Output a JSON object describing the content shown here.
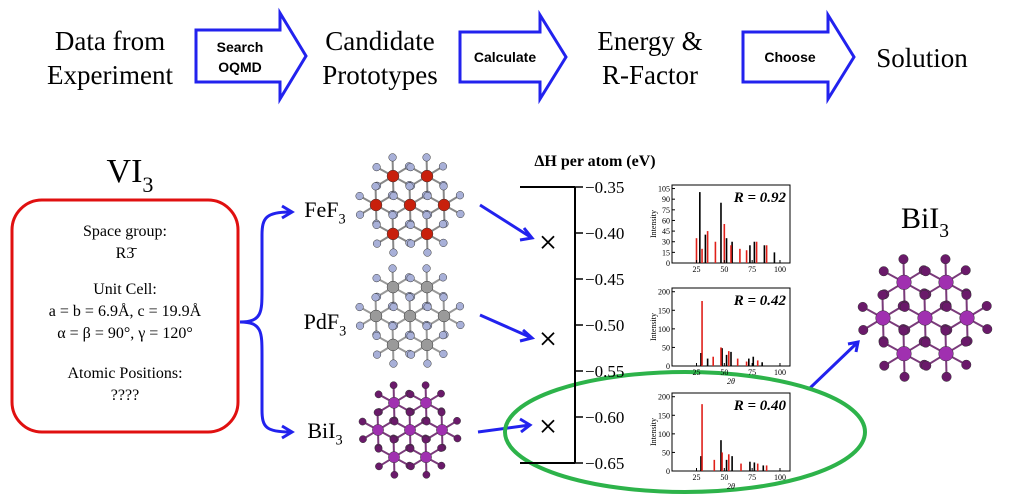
{
  "flow": {
    "steps": [
      {
        "lines": [
          "Data from",
          "Experiment"
        ]
      },
      {
        "lines": [
          "Candidate",
          "Prototypes"
        ]
      },
      {
        "lines": [
          "Energy &",
          "R-Factor"
        ]
      },
      {
        "lines": [
          "Solution"
        ]
      }
    ],
    "arrows": [
      {
        "lines": [
          "Search",
          "OQMD"
        ]
      },
      {
        "lines": [
          "Calculate"
        ]
      },
      {
        "lines": [
          "Choose"
        ]
      }
    ]
  },
  "input": {
    "title": {
      "base": "VI",
      "sub": "3"
    },
    "lines": [
      "Space group:",
      "R3̄",
      "Unit Cell:",
      "a = b = 6.9Å, c = 19.9Å",
      "α = β = 90°, γ = 120°",
      "Atomic Positions:",
      "????"
    ]
  },
  "prototypes": [
    {
      "base": "FeF",
      "sub": "3"
    },
    {
      "base": "PdF",
      "sub": "3"
    },
    {
      "base": "BiI",
      "sub": "3"
    }
  ],
  "energy": {
    "label": "ΔH per atom (eV)",
    "ylim": [
      -0.35,
      -0.65
    ],
    "yticks": [
      {
        "value": -0.35,
        "label": "−0.35"
      },
      {
        "value": -0.4,
        "label": "−0.40"
      },
      {
        "value": -0.45,
        "label": "−0.45"
      },
      {
        "value": -0.5,
        "label": "−0.50"
      },
      {
        "value": -0.55,
        "label": "−0.55"
      },
      {
        "value": -0.6,
        "label": "−0.60"
      },
      {
        "value": -0.65,
        "label": "−0.65"
      }
    ],
    "values": [
      -0.41,
      -0.515,
      -0.61
    ]
  },
  "xrd": {
    "ylabel": "Intensity",
    "xlabel": "2θ",
    "xlim": [
      3,
      109
    ],
    "xticks": [
      25,
      50,
      75,
      100
    ],
    "plots": [
      {
        "r_label": "R = 0.92",
        "ylim": [
          0,
          110
        ],
        "yticks": [
          0,
          15,
          30,
          45,
          60,
          75,
          90,
          105
        ],
        "series": [
          {
            "color": "#000000",
            "x": [
              28,
              33,
              47,
              52,
              57,
              73,
              77,
              86,
              95
            ],
            "values": [
              100,
              40,
              85,
              35,
              30,
              25,
              30,
              25,
              15
            ]
          },
          {
            "color": "#e0201a",
            "x": [
              25,
              30,
              35,
              42,
              50,
              56,
              64,
              70,
              79,
              88
            ],
            "values": [
              35,
              20,
              45,
              30,
              55,
              25,
              20,
              18,
              30,
              25
            ]
          }
        ]
      },
      {
        "r_label": "R = 0.42",
        "ylim": [
          0,
          210
        ],
        "yticks": [
          0,
          50,
          100,
          150,
          200
        ],
        "series": [
          {
            "color": "#000000",
            "x": [
              29,
              35,
              48,
              52,
              56,
              72,
              76,
              84
            ],
            "values": [
              35,
              20,
              48,
              30,
              38,
              20,
              25,
              10
            ]
          },
          {
            "color": "#e0201a",
            "x": [
              30,
              40,
              47,
              54,
              62,
              70,
              80
            ],
            "values": [
              175,
              25,
              50,
              40,
              20,
              12,
              15
            ]
          }
        ]
      },
      {
        "r_label": "R = 0.40",
        "ylim": [
          0,
          210
        ],
        "yticks": [
          0,
          50,
          100,
          150,
          200
        ],
        "series": [
          {
            "color": "#000000",
            "x": [
              29,
              47,
              52,
              57,
              73,
              77,
              85
            ],
            "values": [
              40,
              83,
              30,
              40,
              25,
              23,
              15
            ]
          },
          {
            "color": "#e0201a",
            "x": [
              30,
              41,
              48,
              54,
              65,
              80,
              88
            ],
            "values": [
              180,
              30,
              50,
              45,
              20,
              20,
              15
            ]
          }
        ]
      }
    ]
  },
  "result": {
    "base": "BiI",
    "sub": "3"
  }
}
